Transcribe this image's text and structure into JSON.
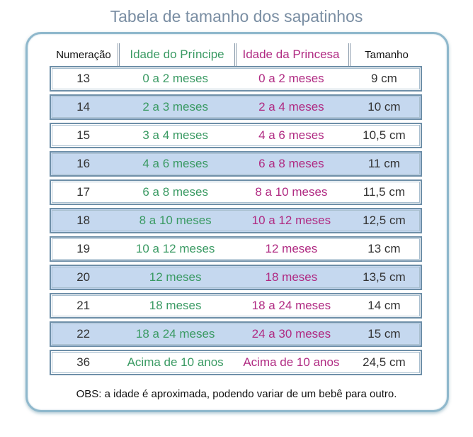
{
  "title": "Tabela de tamanho dos sapatinhos",
  "table": {
    "headers": [
      "Numeração",
      "Idade do Príncipe",
      "Idade da Princesa",
      "Tamanho"
    ],
    "rows": [
      [
        "13",
        "0 a 2 meses",
        "0 a 2 meses",
        "9 cm"
      ],
      [
        "14",
        "2 a 3 meses",
        "2 a 4 meses",
        "10 cm"
      ],
      [
        "15",
        "3 a 4 meses",
        "4 a 6 meses",
        "10,5 cm"
      ],
      [
        "16",
        "4 a 6 meses",
        "6 a 8 meses",
        "11 cm"
      ],
      [
        "17",
        "6 a 8 meses",
        "8 a 10 meses",
        "11,5 cm"
      ],
      [
        "18",
        "8 a 10 meses",
        "10 a 12 meses",
        "12,5 cm"
      ],
      [
        "19",
        "10 a 12 meses",
        "12 meses",
        "13 cm"
      ],
      [
        "20",
        "12 meses",
        "18 meses",
        "13,5 cm"
      ],
      [
        "21",
        "18 meses",
        "18 a 24 meses",
        "14 cm"
      ],
      [
        "22",
        "18 a 24 meses",
        "24 a 30 meses",
        "15 cm"
      ],
      [
        "36",
        "Acima de 10 anos",
        "Acima de 10 anos",
        "24,5 cm"
      ]
    ]
  },
  "note": "OBS: a idade é aproximada, podendo variar de um bebê para outro.",
  "colors": {
    "prince": "#3a9a63",
    "princess": "#b02a82",
    "alt_row": "#c5d8ef",
    "frame": "#8fb8cc",
    "title": "#7a8ea3"
  }
}
